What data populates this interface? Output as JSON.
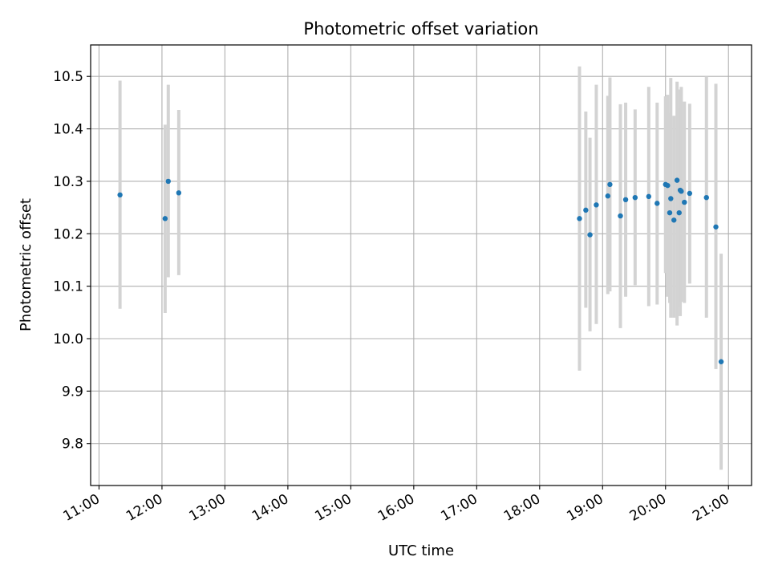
{
  "chart_data": {
    "type": "scatter",
    "title": "Photometric offset variation",
    "xlabel": "UTC time",
    "ylabel": "Photometric offset",
    "x_tick_labels": [
      "11:00",
      "12:00",
      "13:00",
      "14:00",
      "15:00",
      "16:00",
      "17:00",
      "18:00",
      "19:00",
      "20:00",
      "21:00"
    ],
    "y_tick_labels": [
      "9.8",
      "9.9",
      "10.0",
      "10.1",
      "10.2",
      "10.3",
      "10.4",
      "10.5"
    ],
    "xlim": [
      "10:52",
      "21:22"
    ],
    "ylim": [
      9.72,
      10.56
    ],
    "grid": true,
    "point_color": "#1f77b4",
    "errorbar_color": "#d3d3d3",
    "points": [
      {
        "x": "11:20",
        "y": 10.274,
        "yerr_low": 10.057,
        "yerr_high": 10.492
      },
      {
        "x": "12:03",
        "y": 10.229,
        "yerr_low": 10.049,
        "yerr_high": 10.408
      },
      {
        "x": "12:06",
        "y": 10.3,
        "yerr_low": 10.117,
        "yerr_high": 10.484
      },
      {
        "x": "12:16",
        "y": 10.278,
        "yerr_low": 10.121,
        "yerr_high": 10.436
      },
      {
        "x": "18:38",
        "y": 10.229,
        "yerr_low": 9.939,
        "yerr_high": 10.519
      },
      {
        "x": "18:44",
        "y": 10.245,
        "yerr_low": 10.059,
        "yerr_high": 10.433
      },
      {
        "x": "18:48",
        "y": 10.198,
        "yerr_low": 10.014,
        "yerr_high": 10.383
      },
      {
        "x": "18:54",
        "y": 10.255,
        "yerr_low": 10.028,
        "yerr_high": 10.484
      },
      {
        "x": "19:05",
        "y": 10.272,
        "yerr_low": 10.085,
        "yerr_high": 10.463
      },
      {
        "x": "19:07",
        "y": 10.294,
        "yerr_low": 10.09,
        "yerr_high": 10.498
      },
      {
        "x": "19:17",
        "y": 10.234,
        "yerr_low": 10.02,
        "yerr_high": 10.447
      },
      {
        "x": "19:22",
        "y": 10.265,
        "yerr_low": 10.08,
        "yerr_high": 10.45
      },
      {
        "x": "19:31",
        "y": 10.269,
        "yerr_low": 10.102,
        "yerr_high": 10.437
      },
      {
        "x": "19:44",
        "y": 10.271,
        "yerr_low": 10.062,
        "yerr_high": 10.48
      },
      {
        "x": "19:52",
        "y": 10.258,
        "yerr_low": 10.065,
        "yerr_high": 10.45
      },
      {
        "x": "20:00",
        "y": 10.294,
        "yerr_low": 10.125,
        "yerr_high": 10.462
      },
      {
        "x": "20:02",
        "y": 10.292,
        "yerr_low": 10.08,
        "yerr_high": 10.465
      },
      {
        "x": "20:04",
        "y": 10.24,
        "yerr_low": 10.068,
        "yerr_high": 10.43
      },
      {
        "x": "20:05",
        "y": 10.267,
        "yerr_low": 10.04,
        "yerr_high": 10.497
      },
      {
        "x": "20:08",
        "y": 10.226,
        "yerr_low": 10.04,
        "yerr_high": 10.425
      },
      {
        "x": "20:11",
        "y": 10.302,
        "yerr_low": 10.025,
        "yerr_high": 10.49
      },
      {
        "x": "20:13",
        "y": 10.24,
        "yerr_low": 10.06,
        "yerr_high": 10.44
      },
      {
        "x": "20:14",
        "y": 10.283,
        "yerr_low": 10.043,
        "yerr_high": 10.475
      },
      {
        "x": "20:15",
        "y": 10.281,
        "yerr_low": 10.07,
        "yerr_high": 10.48
      },
      {
        "x": "20:18",
        "y": 10.26,
        "yerr_low": 10.068,
        "yerr_high": 10.452
      },
      {
        "x": "20:23",
        "y": 10.277,
        "yerr_low": 10.105,
        "yerr_high": 10.448
      },
      {
        "x": "20:39",
        "y": 10.269,
        "yerr_low": 10.04,
        "yerr_high": 10.5
      },
      {
        "x": "20:48",
        "y": 10.213,
        "yerr_low": 9.942,
        "yerr_high": 10.486
      },
      {
        "x": "20:53",
        "y": 9.956,
        "yerr_low": 9.75,
        "yerr_high": 10.162
      }
    ]
  }
}
